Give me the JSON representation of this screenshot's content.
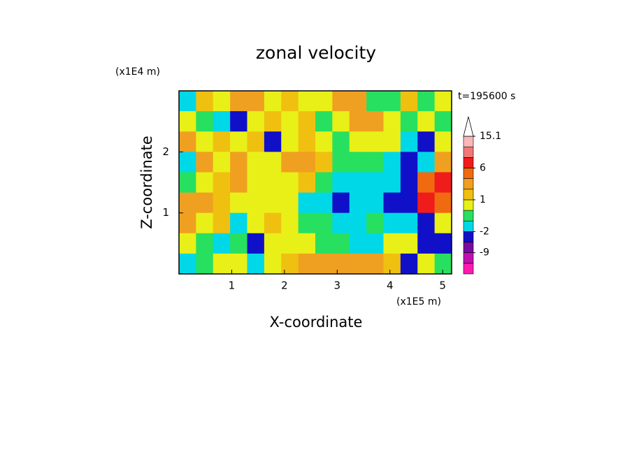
{
  "chart_data": {
    "type": "contour",
    "title": "zonal velocity",
    "xlabel": "X-coordinate",
    "ylabel": "Z-coordinate",
    "xunit": "(x1E5 m)",
    "yunit": "(x1E4 m)",
    "annotation": "t=195600 s",
    "xlim": [
      0,
      5.17
    ],
    "ylim": [
      0,
      3
    ],
    "xticks": [
      1,
      2,
      3,
      4,
      5
    ],
    "yticks": [
      1,
      2
    ],
    "z": [
      [
        -1.5,
        1.5,
        0.5,
        3,
        2,
        0.5,
        1.5,
        0.5,
        0.5,
        3,
        2,
        -0.5,
        -0.5,
        1,
        -0.5,
        0.5
      ],
      [
        0.5,
        -0.5,
        -1.5,
        -4,
        0.5,
        1.5,
        0.5,
        1.5,
        -0.5,
        0.5,
        3,
        3,
        0.5,
        -0.5,
        0.5,
        -1
      ],
      [
        3,
        0.5,
        1.5,
        0.5,
        1.5,
        -3,
        0.5,
        1.5,
        0.5,
        -0.5,
        0.5,
        0.5,
        0.5,
        -1.5,
        -3,
        0.5
      ],
      [
        -1.5,
        3,
        0.5,
        2,
        0.5,
        0.5,
        3,
        3,
        1.5,
        -0.5,
        -0.5,
        -0.5,
        -1.5,
        -3,
        -1.5,
        3
      ],
      [
        -0.5,
        0.5,
        1.5,
        3,
        0.5,
        0.5,
        0.5,
        1.5,
        -0.5,
        -1.5,
        -1.5,
        -1.5,
        -1.5,
        -2.5,
        5,
        7
      ],
      [
        3,
        3,
        1.5,
        0.5,
        0.5,
        0.5,
        0.5,
        -1.5,
        -1.5,
        -4,
        -1.5,
        -1.5,
        -5,
        -3,
        7,
        5
      ],
      [
        2,
        0.5,
        1.5,
        -1.5,
        0.5,
        1.5,
        0.5,
        -0.5,
        -0.5,
        -1.5,
        -1.5,
        -0.5,
        -1.5,
        -1.5,
        -4,
        0.5
      ],
      [
        0.5,
        -0.5,
        -1.5,
        -0.5,
        -3,
        0.5,
        0.5,
        0.5,
        -0.5,
        -0.5,
        -1.5,
        -1.5,
        0.5,
        0.5,
        -4,
        -3
      ],
      [
        -1.5,
        -0.5,
        0.5,
        0.5,
        -1.5,
        0.5,
        1.5,
        3,
        3,
        3,
        3,
        3,
        1.5,
        -4,
        0.5,
        -0.5
      ]
    ],
    "levels": [
      -12,
      -9,
      -6,
      -2,
      -1,
      0,
      1,
      2,
      4,
      6,
      9,
      12,
      15.1
    ],
    "colors": [
      "#ff1ab0",
      "#c010b0",
      "#7a0aa0",
      "#1010c8",
      "#00d8e8",
      "#28e060",
      "#e8f018",
      "#f0c010",
      "#f0a020",
      "#f06a10",
      "#f01c1c",
      "#f07878",
      "#f8b8b8",
      "#ffffff"
    ],
    "colorbar_ticks": [
      15.1,
      6,
      1,
      -2,
      -9
    ]
  }
}
